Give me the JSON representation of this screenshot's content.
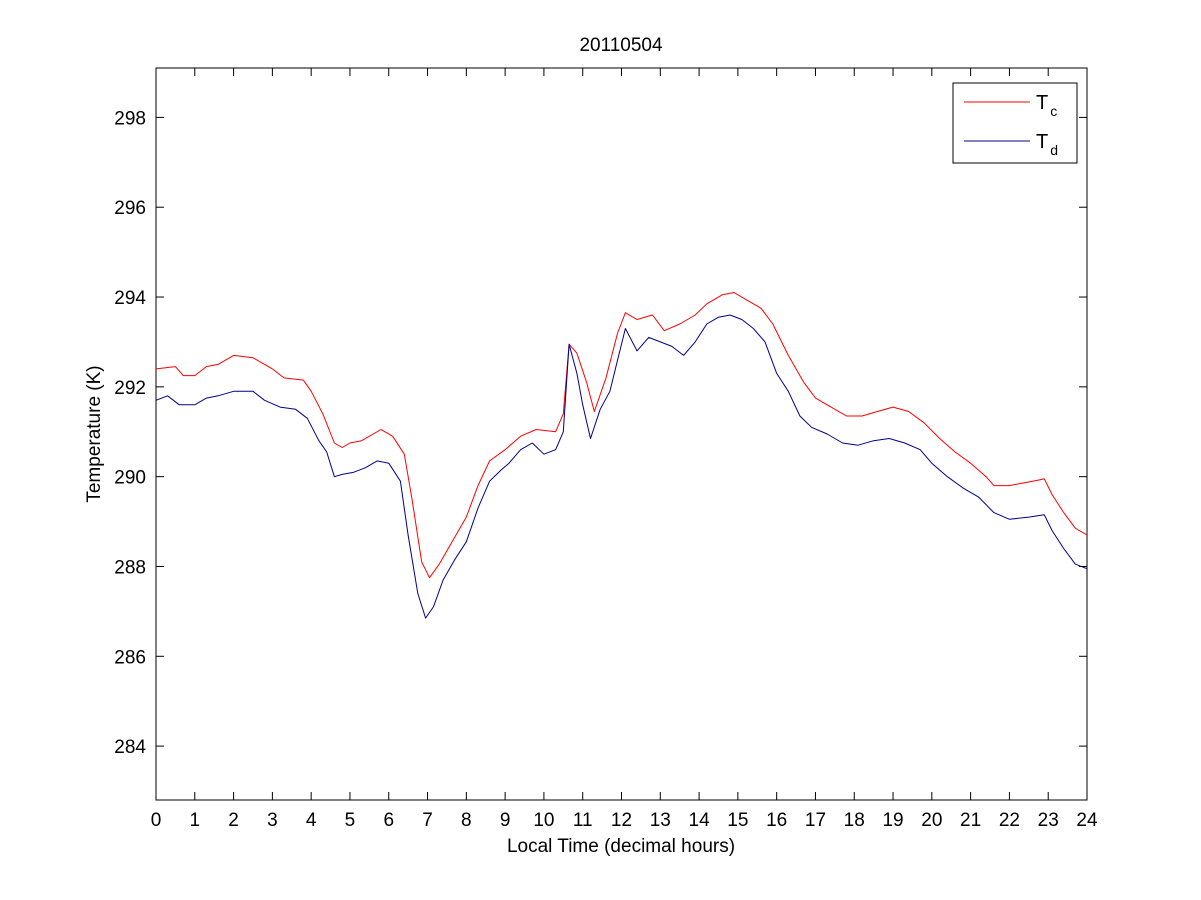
{
  "chart_data": {
    "type": "line",
    "title": "20110504",
    "xlabel": "Local Time (decimal hours)",
    "ylabel": "Temperature (K)",
    "xlim": [
      0,
      24
    ],
    "ylim": [
      282.8,
      299.1
    ],
    "xticks": [
      0,
      1,
      2,
      3,
      4,
      5,
      6,
      7,
      8,
      9,
      10,
      11,
      12,
      13,
      14,
      15,
      16,
      17,
      18,
      19,
      20,
      21,
      22,
      23,
      24
    ],
    "yticks": [
      284,
      286,
      288,
      290,
      292,
      294,
      296,
      298
    ],
    "grid": false,
    "legend_position": "top-right",
    "series": [
      {
        "name_main": "T",
        "name_sub": "c",
        "color": "#ff0000",
        "points": [
          [
            0,
            292.4
          ],
          [
            0.5,
            292.45
          ],
          [
            0.7,
            292.25
          ],
          [
            1.0,
            292.25
          ],
          [
            1.3,
            292.45
          ],
          [
            1.6,
            292.5
          ],
          [
            2.0,
            292.7
          ],
          [
            2.5,
            292.65
          ],
          [
            3.0,
            292.4
          ],
          [
            3.3,
            292.2
          ],
          [
            3.8,
            292.15
          ],
          [
            4.0,
            291.9
          ],
          [
            4.3,
            291.4
          ],
          [
            4.6,
            290.75
          ],
          [
            4.8,
            290.65
          ],
          [
            5.0,
            290.75
          ],
          [
            5.3,
            290.8
          ],
          [
            5.8,
            291.05
          ],
          [
            6.1,
            290.9
          ],
          [
            6.4,
            290.5
          ],
          [
            6.6,
            289.5
          ],
          [
            6.85,
            288.1
          ],
          [
            7.05,
            287.75
          ],
          [
            7.3,
            288.05
          ],
          [
            7.6,
            288.5
          ],
          [
            8.0,
            289.1
          ],
          [
            8.3,
            289.8
          ],
          [
            8.6,
            290.35
          ],
          [
            9.0,
            290.6
          ],
          [
            9.4,
            290.9
          ],
          [
            9.8,
            291.05
          ],
          [
            10.3,
            291.0
          ],
          [
            10.5,
            291.4
          ],
          [
            10.65,
            292.95
          ],
          [
            10.85,
            292.75
          ],
          [
            11.1,
            292.1
          ],
          [
            11.3,
            291.45
          ],
          [
            11.6,
            292.2
          ],
          [
            11.9,
            293.2
          ],
          [
            12.1,
            293.65
          ],
          [
            12.4,
            293.5
          ],
          [
            12.8,
            293.6
          ],
          [
            13.1,
            293.25
          ],
          [
            13.5,
            293.4
          ],
          [
            13.9,
            293.6
          ],
          [
            14.2,
            293.85
          ],
          [
            14.6,
            294.05
          ],
          [
            14.9,
            294.1
          ],
          [
            15.2,
            293.95
          ],
          [
            15.6,
            293.75
          ],
          [
            15.9,
            293.4
          ],
          [
            16.3,
            292.7
          ],
          [
            16.7,
            292.1
          ],
          [
            17.0,
            291.75
          ],
          [
            17.4,
            291.55
          ],
          [
            17.8,
            291.35
          ],
          [
            18.2,
            291.35
          ],
          [
            18.6,
            291.45
          ],
          [
            19.0,
            291.55
          ],
          [
            19.4,
            291.45
          ],
          [
            19.8,
            291.2
          ],
          [
            20.2,
            290.85
          ],
          [
            20.6,
            290.55
          ],
          [
            21.0,
            290.3
          ],
          [
            21.4,
            290.0
          ],
          [
            21.6,
            289.8
          ],
          [
            22.0,
            289.8
          ],
          [
            22.3,
            289.85
          ],
          [
            22.6,
            289.9
          ],
          [
            22.9,
            289.95
          ],
          [
            23.1,
            289.6
          ],
          [
            23.4,
            289.2
          ],
          [
            23.7,
            288.85
          ],
          [
            24.0,
            288.7
          ]
        ]
      },
      {
        "name_main": "T",
        "name_sub": "d",
        "color": "#00008b",
        "points": [
          [
            0,
            291.7
          ],
          [
            0.3,
            291.8
          ],
          [
            0.6,
            291.6
          ],
          [
            1.0,
            291.6
          ],
          [
            1.3,
            291.75
          ],
          [
            1.6,
            291.8
          ],
          [
            2.0,
            291.9
          ],
          [
            2.5,
            291.9
          ],
          [
            2.8,
            291.7
          ],
          [
            3.2,
            291.55
          ],
          [
            3.6,
            291.5
          ],
          [
            3.9,
            291.3
          ],
          [
            4.2,
            290.8
          ],
          [
            4.4,
            290.55
          ],
          [
            4.6,
            290.0
          ],
          [
            4.8,
            290.05
          ],
          [
            5.1,
            290.1
          ],
          [
            5.4,
            290.2
          ],
          [
            5.7,
            290.35
          ],
          [
            6.0,
            290.3
          ],
          [
            6.3,
            289.9
          ],
          [
            6.5,
            288.7
          ],
          [
            6.75,
            287.4
          ],
          [
            6.95,
            286.85
          ],
          [
            7.15,
            287.1
          ],
          [
            7.4,
            287.7
          ],
          [
            7.7,
            288.15
          ],
          [
            8.0,
            288.55
          ],
          [
            8.3,
            289.3
          ],
          [
            8.6,
            289.9
          ],
          [
            8.9,
            290.15
          ],
          [
            9.1,
            290.3
          ],
          [
            9.4,
            290.6
          ],
          [
            9.7,
            290.75
          ],
          [
            10.0,
            290.5
          ],
          [
            10.3,
            290.6
          ],
          [
            10.5,
            291.0
          ],
          [
            10.65,
            292.95
          ],
          [
            10.85,
            292.3
          ],
          [
            11.0,
            291.6
          ],
          [
            11.2,
            290.85
          ],
          [
            11.45,
            291.5
          ],
          [
            11.7,
            291.9
          ],
          [
            11.9,
            292.6
          ],
          [
            12.1,
            293.3
          ],
          [
            12.4,
            292.8
          ],
          [
            12.7,
            293.1
          ],
          [
            13.0,
            293.0
          ],
          [
            13.3,
            292.9
          ],
          [
            13.6,
            292.7
          ],
          [
            13.9,
            293.0
          ],
          [
            14.2,
            293.4
          ],
          [
            14.5,
            293.55
          ],
          [
            14.8,
            293.6
          ],
          [
            15.1,
            293.5
          ],
          [
            15.4,
            293.3
          ],
          [
            15.7,
            293.0
          ],
          [
            16.0,
            292.3
          ],
          [
            16.3,
            291.9
          ],
          [
            16.6,
            291.35
          ],
          [
            16.9,
            291.1
          ],
          [
            17.3,
            290.95
          ],
          [
            17.7,
            290.75
          ],
          [
            18.1,
            290.7
          ],
          [
            18.5,
            290.8
          ],
          [
            18.9,
            290.85
          ],
          [
            19.3,
            290.75
          ],
          [
            19.7,
            290.6
          ],
          [
            20.0,
            290.3
          ],
          [
            20.4,
            290.0
          ],
          [
            20.8,
            289.75
          ],
          [
            21.2,
            289.55
          ],
          [
            21.6,
            289.2
          ],
          [
            22.0,
            289.05
          ],
          [
            22.5,
            289.1
          ],
          [
            22.9,
            289.15
          ],
          [
            23.1,
            288.8
          ],
          [
            23.4,
            288.4
          ],
          [
            23.7,
            288.05
          ],
          [
            24.0,
            287.95
          ]
        ]
      }
    ]
  }
}
